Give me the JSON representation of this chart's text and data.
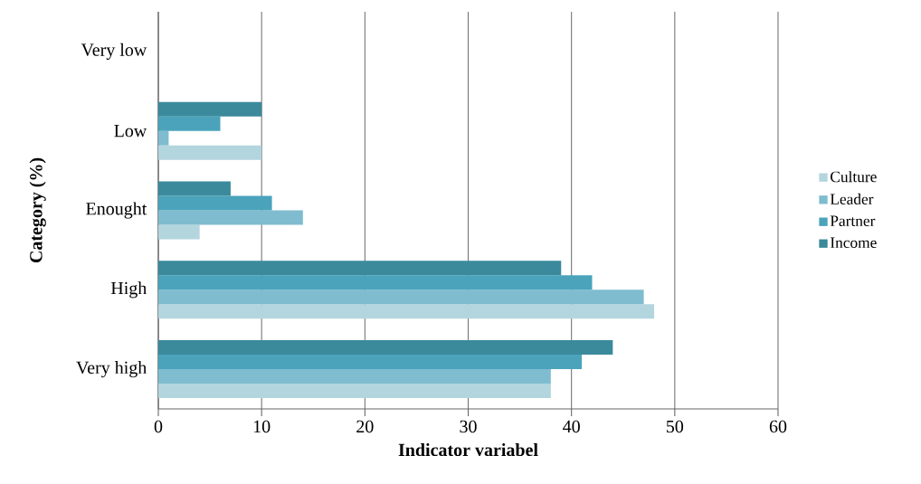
{
  "chart_data": {
    "type": "bar",
    "orientation": "horizontal",
    "xlabel": "Indicator variabel",
    "ylabel": "Category (%)",
    "categories": [
      "Very low",
      "Low",
      "Enought",
      "High",
      "Very high"
    ],
    "series": [
      {
        "name": "Culture",
        "color": "#b3d5de",
        "values": [
          0,
          10,
          4,
          48,
          38
        ]
      },
      {
        "name": "Leader",
        "color": "#7fbccf",
        "values": [
          0,
          1,
          14,
          47,
          38
        ]
      },
      {
        "name": "Partner",
        "color": "#4aa3bb",
        "values": [
          0,
          6,
          11,
          42,
          41
        ]
      },
      {
        "name": "Income",
        "color": "#3a8a9c",
        "values": [
          0,
          10,
          7,
          39,
          44
        ]
      }
    ],
    "xlim": [
      0,
      60
    ],
    "xticks": [
      0,
      10,
      20,
      30,
      40,
      50,
      60
    ],
    "grid": "x",
    "legend": "right"
  }
}
